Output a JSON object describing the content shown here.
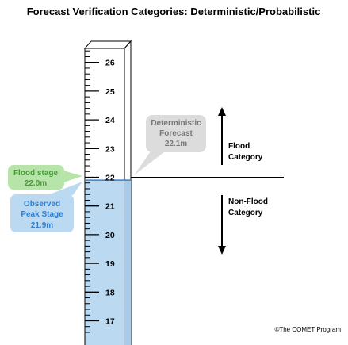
{
  "title": "Forecast Verification Categories: Deterministic/Probabilistic",
  "gauge": {
    "ticks": [
      26,
      25,
      24,
      23,
      22,
      21,
      20,
      19,
      18,
      17
    ],
    "flood_stage_value": 22.0,
    "observed_peak_value": 21.9,
    "forecast_value": 22.1
  },
  "flood_stage_label": [
    "Flood stage",
    "22.0m"
  ],
  "observed_label": [
    "Observed",
    "Peak Stage",
    "21.9m"
  ],
  "forecast_label": [
    "Deterministic",
    "Forecast",
    "22.1m"
  ],
  "flood_category_label": [
    "Flood",
    "Category"
  ],
  "nonflood_category_label": [
    "Non-Flood",
    "Category"
  ],
  "credit": "©The COMET Program",
  "colors": {
    "water": "#bcd9f2",
    "water_line": "#3a7fc6",
    "flood_callout": "#b7e4a8",
    "flood_callout_text": "#4a9a3a",
    "observed_callout": "#bcd9f2",
    "observed_callout_text": "#2f7fd0",
    "forecast_callout": "#dcdcdc",
    "forecast_callout_text": "#777777"
  }
}
